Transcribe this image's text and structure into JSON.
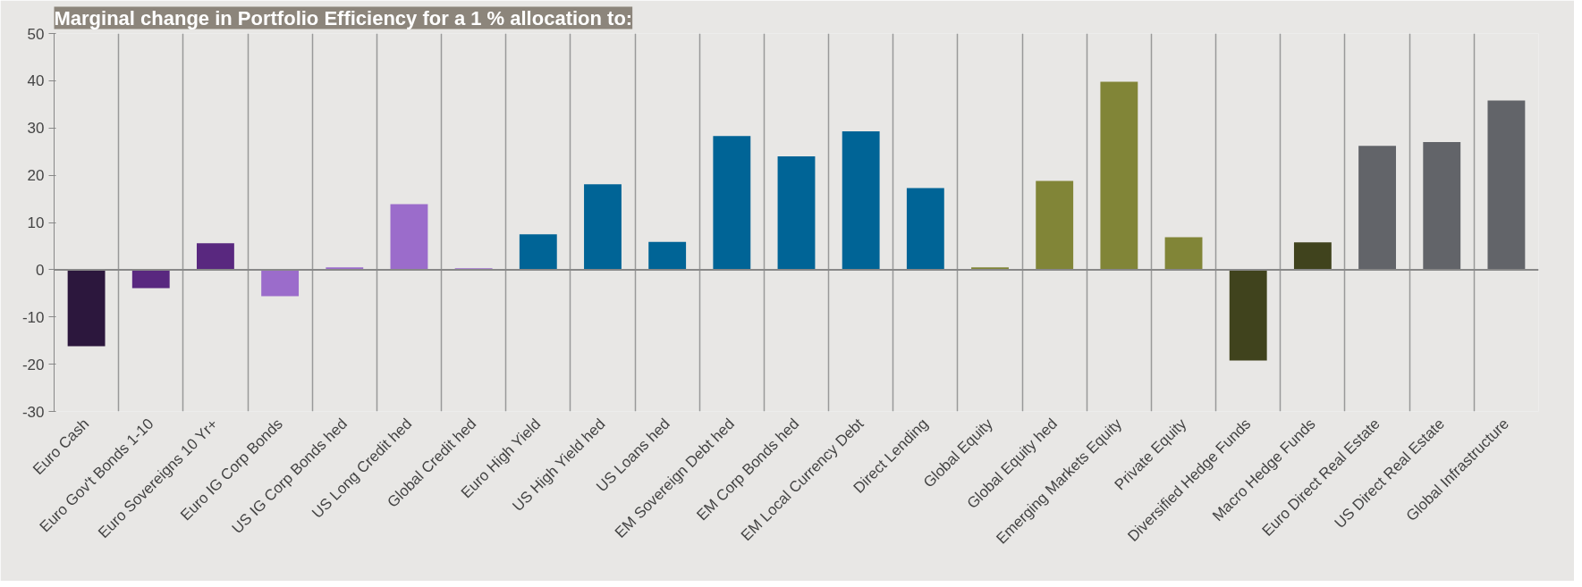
{
  "chart_data": {
    "type": "bar",
    "title": "Marginal change in Portfolio Efficiency for a 1 % allocation to:",
    "categories": [
      "Euro Cash",
      "Euro Gov't Bonds 1-10",
      "Euro Sovereigns 10 Yr+",
      "Euro IG Corp Bonds",
      "US IG Corp Bonds hed",
      "US Long Credit hed",
      "Global Credit hed",
      "Euro High Yield",
      "US High Yield hed",
      "US Loans hed",
      "EM Sovereign Debt hed",
      "EM Corp Bonds hed",
      "EM Local Currency Debt",
      "Direct Lending",
      "Global Equity",
      "Global Equity hed",
      "Emerging Markets Equity",
      "Private Equity",
      "Diversified Hedge Funds",
      "Macro Hedge Funds",
      "Euro Direct Real Estate",
      "US Direct Real Estate",
      "Global Infrastructure"
    ],
    "values": [
      -16.2,
      -3.9,
      5.6,
      -5.6,
      0.5,
      13.9,
      0.3,
      7.5,
      18.1,
      5.9,
      28.3,
      24.0,
      29.3,
      17.3,
      0.5,
      18.8,
      39.8,
      6.9,
      -19.2,
      5.8,
      26.2,
      27.0,
      35.8
    ],
    "colors": [
      "#2c173d",
      "#59287f",
      "#59287f",
      "#9b6ccb",
      "#9b6ccb",
      "#9b6ccb",
      "#9b6ccb",
      "#006496",
      "#006496",
      "#006496",
      "#006496",
      "#006496",
      "#006496",
      "#006496",
      "#818537",
      "#818537",
      "#818537",
      "#818537",
      "#40431d",
      "#40431d",
      "#626469",
      "#626469",
      "#626469"
    ],
    "ylim": [
      -30,
      50
    ],
    "yticks": [
      -30,
      -20,
      -10,
      0,
      10,
      20,
      30,
      40,
      50
    ],
    "grid": "x"
  }
}
